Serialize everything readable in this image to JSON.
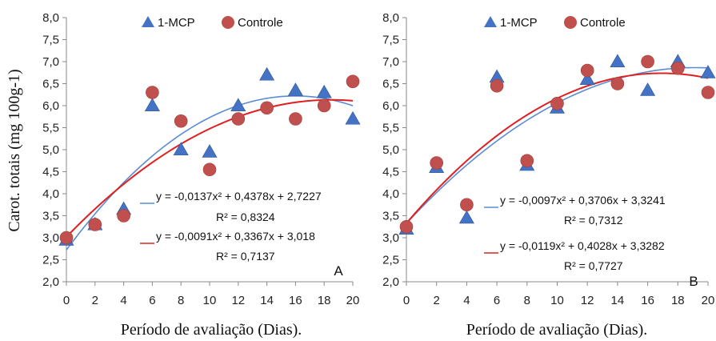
{
  "chart_data": [
    {
      "type": "scatter",
      "panel_label": "A",
      "xlabel": "Período de avaliação (Dias).",
      "ylabel": "Carot. totais (mg 100g-1)",
      "xlim": [
        0,
        20
      ],
      "ylim": [
        2.0,
        8.0
      ],
      "x_ticks": [
        "0",
        "2",
        "4",
        "6",
        "8",
        "10",
        "12",
        "14",
        "16",
        "18",
        "20"
      ],
      "y_ticks": [
        "2,0",
        "2,5",
        "3,0",
        "3,5",
        "4,0",
        "4,5",
        "5,0",
        "5,5",
        "6,0",
        "6,5",
        "7,0",
        "7,5",
        "8,0"
      ],
      "legend_position": "top",
      "series": [
        {
          "name": "1-MCP",
          "marker": "triangle",
          "color": "#4472C4",
          "x": [
            0,
            2,
            4,
            6,
            8,
            10,
            12,
            14,
            16,
            18,
            20
          ],
          "y": [
            2.95,
            3.3,
            3.65,
            6.0,
            5.0,
            4.95,
            6.0,
            6.7,
            6.35,
            6.3,
            5.7
          ],
          "fit": {
            "a": -0.0137,
            "b": 0.4378,
            "c": 2.7227,
            "color": "#5B8BD0"
          },
          "equation": "y = -0,0137x² + 0,4378x + 2,7227",
          "r2": "R² = 0,8324"
        },
        {
          "name": "Controle",
          "marker": "circle",
          "color": "#C0504D",
          "x": [
            0,
            2,
            4,
            6,
            8,
            10,
            12,
            14,
            16,
            18,
            20
          ],
          "y": [
            3.0,
            3.3,
            3.5,
            6.3,
            5.65,
            4.55,
            5.7,
            5.95,
            5.7,
            6.0,
            6.55
          ],
          "fit": {
            "a": -0.0091,
            "b": 0.3367,
            "c": 3.018,
            "color": "#E02020"
          },
          "equation": "y = -0,0091x² + 0,3367x + 3,018",
          "r2": "R² = 0,7137"
        }
      ]
    },
    {
      "type": "scatter",
      "panel_label": "B",
      "xlabel": "Período de avaliação (Dias).",
      "ylabel": "",
      "xlim": [
        0,
        20
      ],
      "ylim": [
        2.0,
        8.0
      ],
      "x_ticks": [
        "0",
        "2",
        "4",
        "6",
        "8",
        "10",
        "12",
        "14",
        "16",
        "18",
        "20"
      ],
      "y_ticks": [
        "2,0",
        "2,5",
        "3,0",
        "3,5",
        "4,0",
        "4,5",
        "5,0",
        "5,5",
        "6,0",
        "6,5",
        "7,0",
        "7,5",
        "8,0"
      ],
      "legend_position": "top",
      "series": [
        {
          "name": "1-MCP",
          "marker": "triangle",
          "color": "#4472C4",
          "x": [
            0,
            2,
            4,
            6,
            8,
            10,
            12,
            14,
            16,
            18,
            20
          ],
          "y": [
            3.2,
            4.6,
            3.45,
            6.65,
            4.65,
            5.95,
            6.6,
            7.0,
            6.35,
            7.0,
            6.75
          ],
          "fit": {
            "a": -0.0097,
            "b": 0.3706,
            "c": 3.3241,
            "color": "#5B8BD0"
          },
          "equation": "y = -0,0097x² + 0,3706x + 3,3241",
          "r2": "R² = 0,7312"
        },
        {
          "name": "Controle",
          "marker": "circle",
          "color": "#C0504D",
          "x": [
            0,
            2,
            4,
            6,
            8,
            10,
            12,
            14,
            16,
            18,
            20
          ],
          "y": [
            3.25,
            4.7,
            3.75,
            6.45,
            4.75,
            6.05,
            6.8,
            6.5,
            7.0,
            6.85,
            6.3
          ],
          "fit": {
            "a": -0.0119,
            "b": 0.4028,
            "c": 3.3282,
            "color": "#E02020"
          },
          "equation": "y = -0,0119x² + 0,4028x + 3,3282",
          "r2": "R² = 0,7727"
        }
      ]
    }
  ]
}
